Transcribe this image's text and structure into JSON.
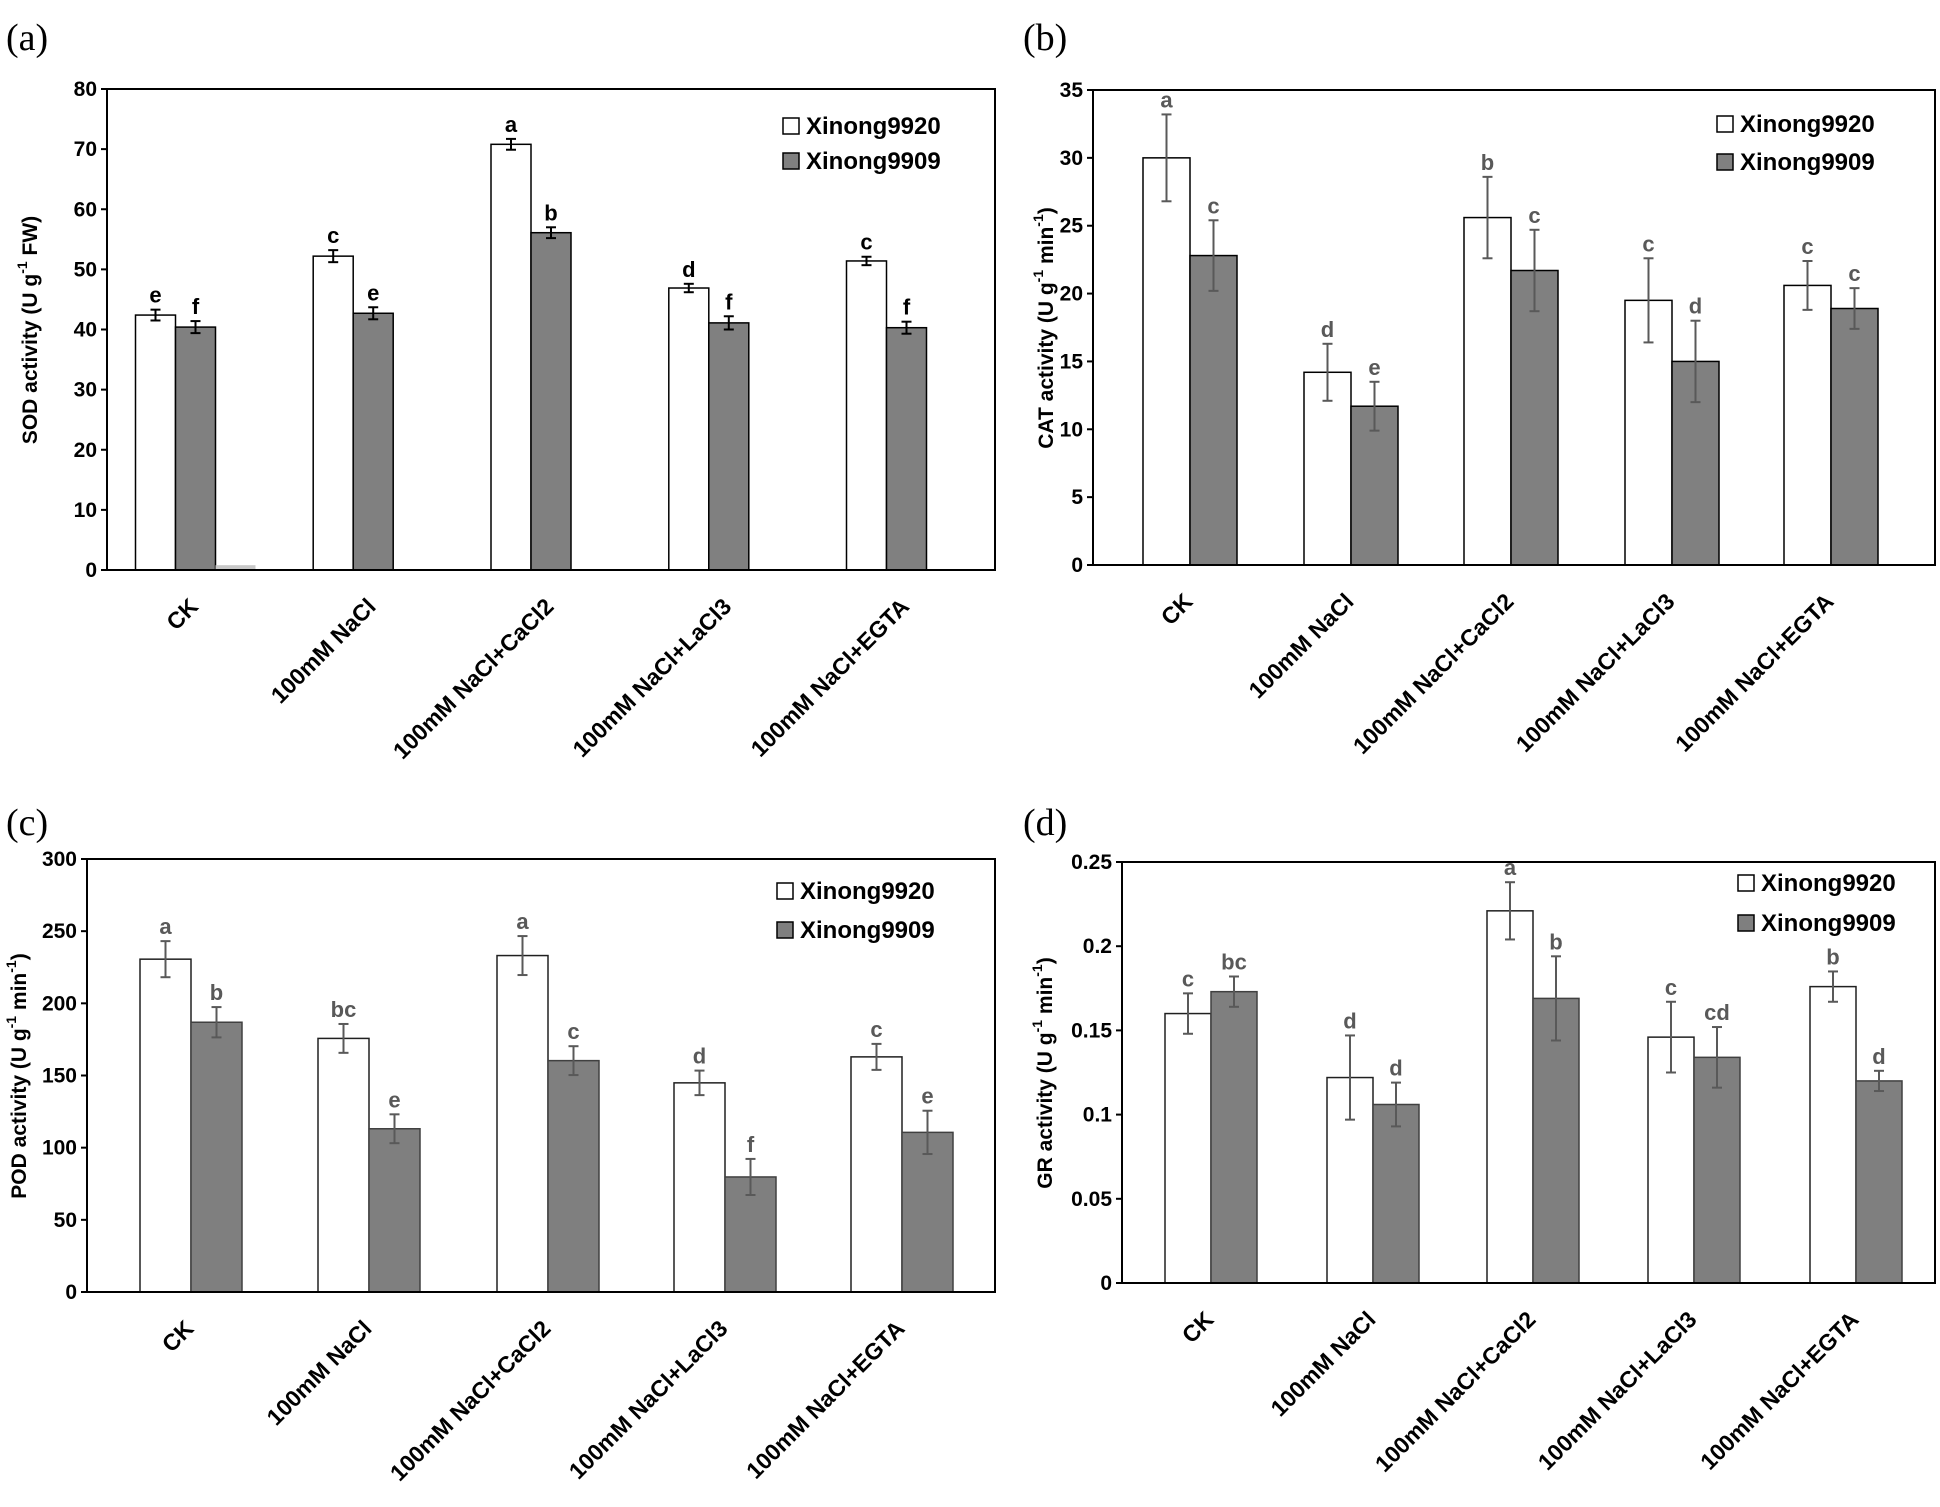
{
  "chart_data": [
    {
      "type": "bar",
      "panel_label": "(a)",
      "categories": [
        "CK",
        "100mM NaCl",
        "100mM NaCl+CaCl2",
        "100mM NaCl+LaCl3",
        "100mM NaCl+EGTA"
      ],
      "ylabel": "SOD activity (U g-1 FW)",
      "ylim": [
        0,
        80
      ],
      "yticks": [
        "0",
        "10",
        "20",
        "30",
        "40",
        "50",
        "60",
        "70",
        "80"
      ],
      "legend": "top-right",
      "annotation_color": "#000000",
      "error_color": "#000000",
      "series": [
        {
          "name": "Xinong9920",
          "color": "#ffffff",
          "edgecolor": "#000000",
          "values": [
            42.4,
            52.2,
            70.8,
            46.9,
            51.4
          ],
          "errors": [
            0.9,
            1.0,
            0.9,
            0.7,
            0.7
          ],
          "letters": [
            "e",
            "c",
            "a",
            "d",
            "c"
          ]
        },
        {
          "name": "Xinong9909",
          "color": "#808080",
          "edgecolor": "#000000",
          "values": [
            40.4,
            42.7,
            56.1,
            41.1,
            40.3
          ],
          "errors": [
            1.0,
            1.0,
            0.9,
            1.1,
            1.0
          ],
          "letters": [
            "f",
            "e",
            "b",
            "f",
            "f"
          ]
        },
        {
          "color": "#c8c8c8",
          "values": [
            0.8,
            0,
            0,
            0,
            0
          ]
        }
      ]
    },
    {
      "type": "bar",
      "panel_label": "(b)",
      "categories": [
        "CK",
        "100mM NaCl",
        "100mM NaCl+CaCl2",
        "100mM NaCl+LaCl3",
        "100mM NaCl+EGTA"
      ],
      "ylabel": "CAT activity (U g-1 min-1)",
      "ylim": [
        0,
        35
      ],
      "yticks": [
        "0",
        "5",
        "10",
        "15",
        "20",
        "25",
        "30",
        "35"
      ],
      "legend": "top-right",
      "annotation_color": "#595959",
      "error_color": "#595959",
      "series": [
        {
          "name": "Xinong9920",
          "color": "#ffffff",
          "edgecolor": "#000000",
          "values": [
            30.0,
            14.2,
            25.6,
            19.5,
            20.6
          ],
          "errors": [
            3.2,
            2.1,
            3.0,
            3.1,
            1.8
          ],
          "letters": [
            "a",
            "d",
            "b",
            "c",
            "c"
          ]
        },
        {
          "name": "Xinong9909",
          "color": "#808080",
          "edgecolor": "#000000",
          "values": [
            22.8,
            11.7,
            21.7,
            15.0,
            18.9
          ],
          "errors": [
            2.6,
            1.8,
            3.0,
            3.0,
            1.5
          ],
          "letters": [
            "c",
            "e",
            "c",
            "d",
            "c"
          ]
        }
      ]
    },
    {
      "type": "bar",
      "panel_label": "(c)",
      "categories": [
        "CK",
        "100mM NaCl",
        "100mM NaCl+CaCl2",
        "100mM NaCl+LaCl3",
        "100mM NaCl+EGTA"
      ],
      "ylabel": "POD activity (U g-1 min-1)",
      "ylim": [
        0,
        300
      ],
      "yticks": [
        "0",
        "50",
        "100",
        "150",
        "200",
        "250",
        "300"
      ],
      "legend": "top-right",
      "annotation_color": "#595959",
      "error_color": "#595959",
      "series": [
        {
          "name": "Xinong9920",
          "color": "#ffffff",
          "edgecolor": "#202020",
          "values": [
            230.6,
            175.7,
            233.1,
            144.9,
            162.9
          ],
          "errors": [
            12.5,
            10.0,
            13.5,
            8.5,
            9.0
          ],
          "letters": [
            "a",
            "bc",
            "a",
            "d",
            "c"
          ]
        },
        {
          "name": "Xinong9909",
          "color": "#7f7f7f",
          "edgecolor": "#404040",
          "values": [
            186.9,
            113.1,
            160.3,
            79.7,
            110.6
          ],
          "errors": [
            10.5,
            10.0,
            10.0,
            12.5,
            15.0
          ],
          "letters": [
            "b",
            "e",
            "c",
            "f",
            "e"
          ]
        }
      ]
    },
    {
      "type": "bar",
      "panel_label": "(d)",
      "categories": [
        "CK",
        "100mM NaCl",
        "100mM NaCl+CaCl2",
        "100mM NaCl+LaCl3",
        "100mM NaCl+EGTA"
      ],
      "ylabel": "GR activity (U g-1 min-1)",
      "ylim": [
        0,
        0.25
      ],
      "yticks": [
        "0",
        "0.05",
        "0.1",
        "0.15",
        "0.2",
        "0.25"
      ],
      "legend": "top-right",
      "annotation_color": "#595959",
      "error_color": "#595959",
      "series": [
        {
          "name": "Xinong9920",
          "color": "#ffffff",
          "edgecolor": "#202020",
          "values": [
            0.16,
            0.122,
            0.221,
            0.146,
            0.176
          ],
          "errors": [
            0.012,
            0.025,
            0.017,
            0.021,
            0.009
          ],
          "letters": [
            "c",
            "d",
            "a",
            "c",
            "b"
          ]
        },
        {
          "name": "Xinong9909",
          "color": "#7f7f7f",
          "edgecolor": "#404040",
          "values": [
            0.173,
            0.106,
            0.169,
            0.134,
            0.12
          ],
          "errors": [
            0.009,
            0.013,
            0.025,
            0.018,
            0.006
          ],
          "letters": [
            "bc",
            "d",
            "b",
            "cd",
            "d"
          ]
        }
      ]
    }
  ]
}
